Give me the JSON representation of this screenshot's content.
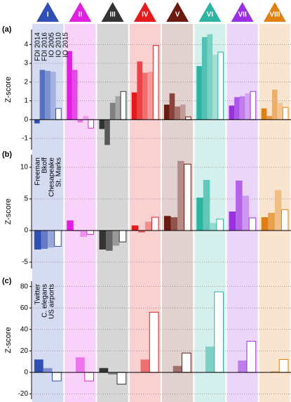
{
  "groups": {
    "labels": [
      "I",
      "II",
      "III",
      "IV",
      "V",
      "VI",
      "VII",
      "VIII"
    ],
    "colors": [
      "#2f4fb5",
      "#e020e0",
      "#333333",
      "#e41a1c",
      "#6b1a10",
      "#2db3a0",
      "#9a30e0",
      "#e08010"
    ]
  },
  "chart_data": [
    {
      "type": "bar",
      "panel_label": "(a)",
      "ylabel": "Z-score",
      "ylim": [
        -1.6,
        4.8
      ],
      "yticks": [
        -1,
        0,
        1,
        2,
        3,
        4
      ],
      "grid": true,
      "series": [
        {
          "name": "FDI 2014",
          "values": [
            -0.2,
            3.65,
            -0.5,
            1.45,
            0.8,
            2.85,
            0.75,
            0.6
          ]
        },
        {
          "name": "FDI 2016",
          "values": [
            2.65,
            2.65,
            -1.35,
            3.1,
            1.4,
            4.4,
            1.2,
            0.2
          ]
        },
        {
          "name": "IO 2005",
          "values": [
            2.6,
            -0.15,
            0.9,
            2.5,
            0.7,
            4.55,
            1.25,
            1.6
          ]
        },
        {
          "name": "IO 2010",
          "values": [
            2.55,
            0.2,
            1.25,
            2.55,
            0.8,
            3.45,
            1.4,
            0.9
          ]
        },
        {
          "name": "IO 2015",
          "values": [
            0.6,
            -0.45,
            1.5,
            3.95,
            0.15,
            3.6,
            1.5,
            0.65
          ]
        }
      ]
    },
    {
      "type": "bar",
      "panel_label": "(b)",
      "ylabel": "Z-score",
      "ylim": [
        -6,
        12
      ],
      "yticks": [
        -5,
        0,
        5,
        10
      ],
      "grid": true,
      "series": [
        {
          "name": "Freeman",
          "values": [
            -3.0,
            1.6,
            -3.0,
            0.8,
            2.3,
            5.2,
            3.0,
            2.1
          ]
        },
        {
          "name": "Bkoff",
          "values": [
            -2.9,
            -0.1,
            -3.2,
            -0.3,
            2.1,
            8.0,
            7.9,
            2.8
          ]
        },
        {
          "name": "Chesapeake",
          "values": [
            -2.7,
            -1.0,
            -2.4,
            1.4,
            11.0,
            1.2,
            5.5,
            6.4
          ]
        },
        {
          "name": "St. Marks",
          "values": [
            -2.5,
            -0.6,
            -1.8,
            2.1,
            10.5,
            1.8,
            2.0,
            3.3
          ]
        }
      ]
    },
    {
      "type": "bar",
      "panel_label": "(c)",
      "ylabel": "Z-score",
      "ylim": [
        -25,
        85
      ],
      "yticks": [
        -20,
        0,
        20,
        40,
        60,
        80
      ],
      "grid": true,
      "series": [
        {
          "name": "Twitter",
          "values": [
            12,
            0,
            4,
            0,
            0,
            0,
            0,
            0
          ]
        },
        {
          "name": "C. elegans",
          "values": [
            4,
            14,
            -2,
            12,
            6,
            24,
            11,
            1
          ]
        },
        {
          "name": "US airports",
          "values": [
            -8,
            -8,
            -11,
            56,
            18,
            75,
            29,
            12
          ]
        }
      ]
    }
  ]
}
